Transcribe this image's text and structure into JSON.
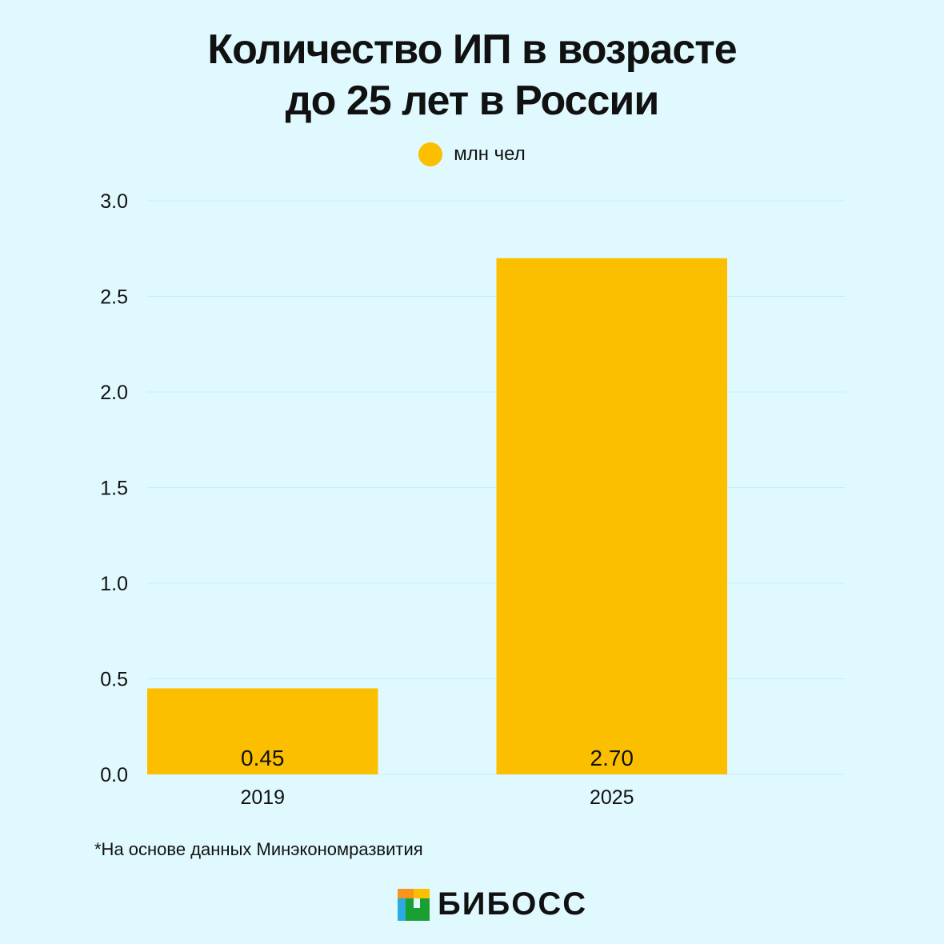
{
  "chart_data": {
    "type": "bar",
    "title": "Количество ИП в возрасте до 25 лет в России",
    "title_lines": [
      "Количество ИП в возрасте",
      "до 25 лет в России"
    ],
    "categories": [
      "2019",
      "2025"
    ],
    "series": [
      {
        "name": "млн чел",
        "values": [
          0.45,
          2.7
        ]
      }
    ],
    "value_labels": [
      "0.45",
      "2.70"
    ],
    "ylim": [
      0,
      3.0
    ],
    "yticks": [
      "0.0",
      "0.5",
      "1.0",
      "1.5",
      "2.0",
      "2.5",
      "3.0"
    ],
    "grid": true,
    "legend_position": "top-center",
    "color": "#fcbf00"
  },
  "footnote": "*На основе данных Минэкономразвития",
  "logo": {
    "text": "БИБОСС"
  }
}
